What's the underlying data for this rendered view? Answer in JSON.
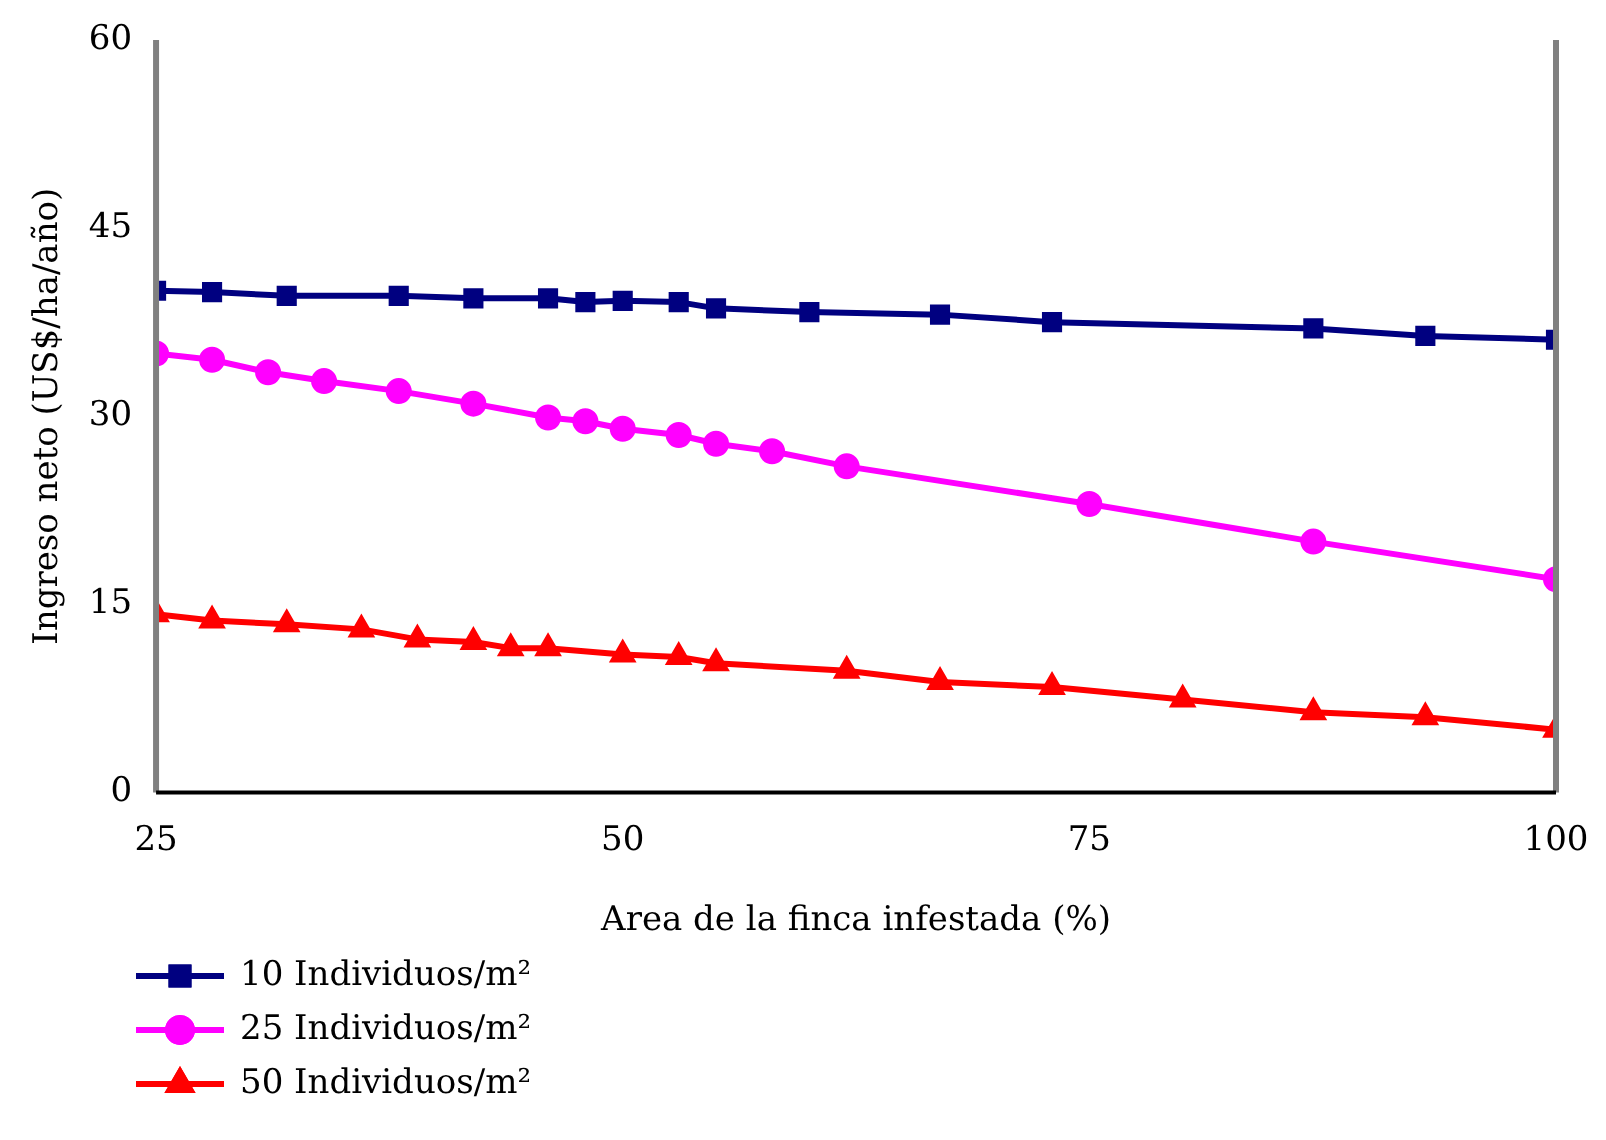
{
  "chart_data": {
    "type": "line",
    "xlabel": "Area de la finca infestada (%)",
    "ylabel": "Ingreso neto (US$/ha/año)",
    "xlim": [
      25,
      100
    ],
    "xticks": [
      25,
      50,
      75,
      100
    ],
    "ylim": [
      0,
      60
    ],
    "yticks": [
      0,
      15,
      30,
      45,
      60
    ],
    "grid": false,
    "legend": "bottom left",
    "line_style": "solid",
    "series": [
      {
        "name": "10 Individuos/m²",
        "color": "#000080",
        "marker": "square",
        "x": [
          25,
          28,
          32,
          38,
          42,
          46,
          48,
          50,
          53,
          55,
          60,
          67,
          73,
          87,
          93,
          100
        ],
        "values": [
          40.0,
          39.9,
          39.6,
          39.6,
          39.4,
          39.4,
          39.1,
          39.2,
          39.1,
          38.6,
          38.3,
          38.1,
          37.5,
          37.0,
          36.4,
          36.1
        ]
      },
      {
        "name": "25 Individuos/m²",
        "color": "#ff00ff",
        "marker": "circle",
        "x": [
          25,
          28,
          31,
          34,
          38,
          42,
          46,
          48,
          50,
          53,
          55,
          58,
          62,
          75,
          87,
          100
        ],
        "values": [
          35.0,
          34.5,
          33.5,
          32.8,
          32.0,
          31.0,
          29.9,
          29.6,
          29.0,
          28.5,
          27.8,
          27.2,
          26.0,
          23.0,
          20.0,
          17.0
        ]
      },
      {
        "name": "50 Individuos/m²",
        "color": "#ff0000",
        "marker": "triangle",
        "x": [
          25,
          28,
          32,
          36,
          39,
          42,
          44,
          46,
          50,
          53,
          55,
          62,
          67,
          73,
          80,
          87,
          93,
          100
        ],
        "values": [
          14.2,
          13.7,
          13.4,
          13.0,
          12.2,
          12.0,
          11.5,
          11.5,
          11.0,
          10.8,
          10.3,
          9.7,
          8.8,
          8.4,
          7.4,
          6.4,
          6.0,
          5.0
        ]
      }
    ]
  }
}
